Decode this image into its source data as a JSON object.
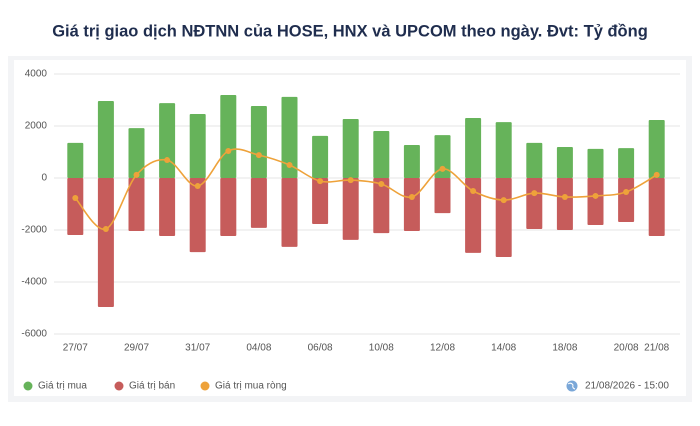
{
  "chart_data": {
    "type": "bar",
    "title": "Giá trị giao dịch NĐTNN của HOSE, HNX và UPCOM theo ngày. Đvt: Tỷ đồng",
    "categories": [
      "27/07",
      null,
      "29/07",
      null,
      "31/07",
      null,
      "04/08",
      null,
      "06/08",
      null,
      "10/08",
      null,
      "12/08",
      null,
      "14/08",
      null,
      "18/08",
      null,
      "20/08",
      "21/08"
    ],
    "series": [
      {
        "name": "Giá trị mua",
        "color": "#66b35a",
        "values": [
          1350,
          2960,
          1920,
          2880,
          2460,
          3190,
          2770,
          3120,
          1620,
          2270,
          1810,
          1270,
          1650,
          2310,
          2150,
          1350,
          1190,
          1120,
          1150,
          2230
        ]
      },
      {
        "name": "Giá trị bán",
        "color": "#c65c5b",
        "values": [
          -2190,
          -4960,
          -2040,
          -2230,
          -2850,
          -2230,
          -1920,
          -2650,
          -1770,
          -2380,
          -2120,
          -2040,
          -1350,
          -2880,
          -3040,
          -1960,
          -2000,
          -1810,
          -1690,
          -2230
        ]
      },
      {
        "name": "Giá trị mua ròng",
        "color": "#eea23a",
        "type": "line",
        "values": [
          -770,
          -1960,
          120,
          690,
          -310,
          1040,
          880,
          500,
          -120,
          -80,
          -230,
          -730,
          350,
          -500,
          -850,
          -580,
          -730,
          -690,
          -540,
          120
        ]
      }
    ],
    "ylim": [
      -6000,
      4000
    ],
    "yticks": [
      -6000,
      -4000,
      -2000,
      0,
      2000,
      4000
    ],
    "grid": true,
    "timestamp": "21/08/2026 - 15:00"
  }
}
